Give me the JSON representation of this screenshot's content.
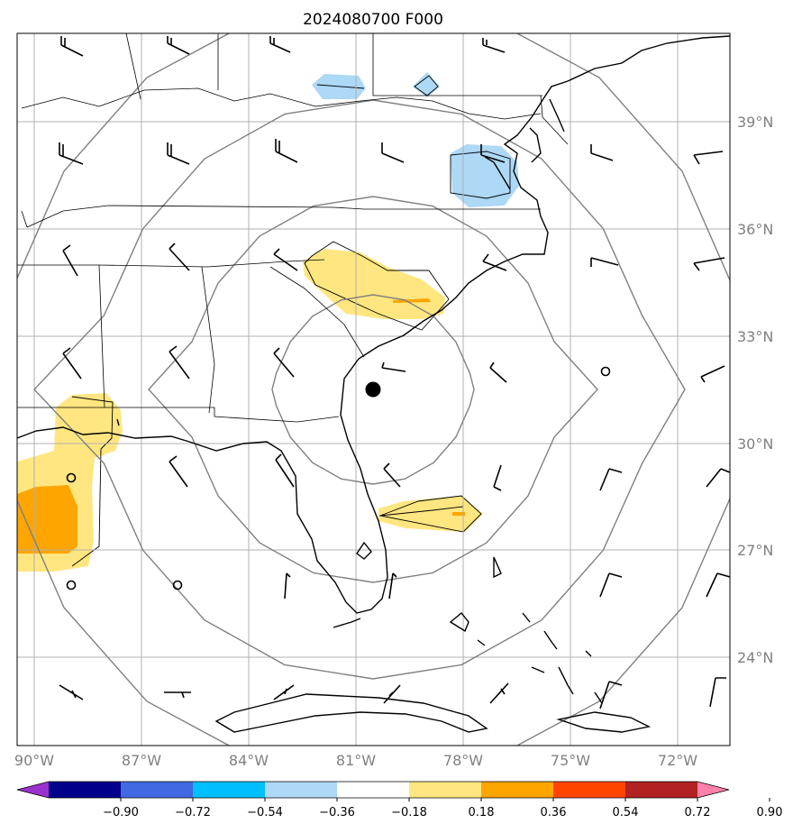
{
  "title": "2024080700 F000",
  "lon_labels": [
    "90°W",
    "87°W",
    "84°W",
    "81°W",
    "78°W",
    "75°W",
    "72°W"
  ],
  "lat_labels": [
    "39°N",
    "36°N",
    "33°N",
    "30°N",
    "27°N",
    "24°N"
  ],
  "colorbar": {
    "colors": [
      "#9932CC",
      "#00008B",
      "#4169E1",
      "#00BFFF",
      "#ADD8F6",
      "#FFFFFF",
      "#FFE680",
      "#FFA500",
      "#FF4500",
      "#B22222",
      "#FF80AA"
    ],
    "labels": [
      "−0.90",
      "−0.72",
      "−0.54",
      "−0.36",
      "−0.18",
      "0.18",
      "0.36",
      "0.54",
      "0.72",
      "0.90"
    ]
  },
  "center_marker": {
    "lon": -80.5,
    "lat": 31.5,
    "icon": "filled-circle"
  },
  "range_rings": 5,
  "fill_colors": {
    "light_yellow": "#FFE680",
    "orange": "#FFA500",
    "light_blue": "#ADD8F6"
  }
}
